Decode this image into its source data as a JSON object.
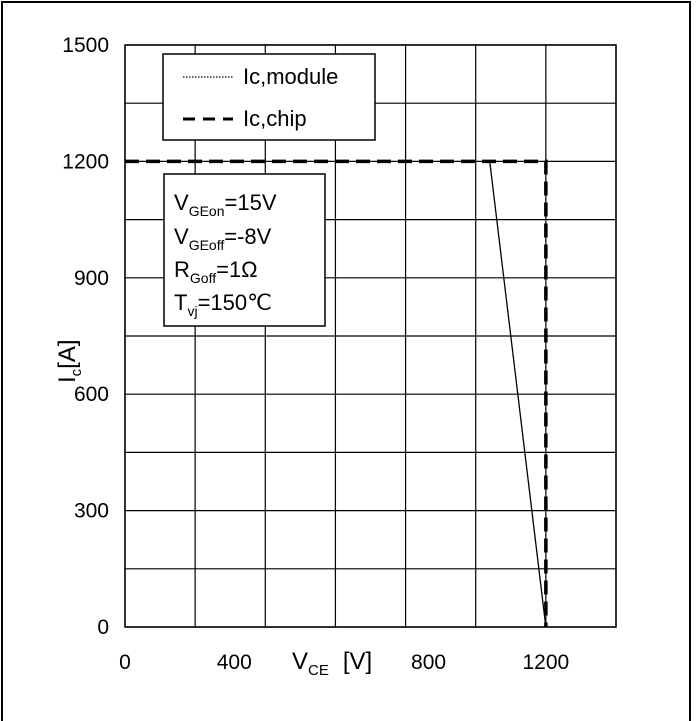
{
  "chart_data": {
    "type": "line",
    "xlabel": {
      "main": "V",
      "sub": "CE",
      "unit": "[V]"
    },
    "ylabel": {
      "main": "I",
      "sub": "c",
      "unit": "[A]"
    },
    "xlim": [
      0,
      1400
    ],
    "ylim": [
      0,
      1500
    ],
    "x_ticks": [
      "0",
      "400",
      "800",
      "1200"
    ],
    "y_ticks": [
      "0",
      "300",
      "600",
      "900",
      "1200",
      "1500"
    ],
    "grid": true,
    "legend_position": "top-left",
    "series": [
      {
        "name": "Ic,module",
        "style": "dotted",
        "x": [
          1040,
          1200
        ],
        "y": [
          1200,
          0
        ]
      },
      {
        "name": "Ic,chip",
        "style": "dashed",
        "x": [
          0,
          1200,
          1200
        ],
        "y": [
          1200,
          1200,
          0
        ]
      }
    ],
    "annotation": [
      {
        "main": "V",
        "sub": "GEon",
        "value": "=15V"
      },
      {
        "main": "V",
        "sub": "GEoff",
        "value": "=-8V"
      },
      {
        "main": "R",
        "sub": "Goff",
        "value": "=1Ω"
      },
      {
        "main": "T",
        "sub": "vj",
        "value": "=150℃"
      }
    ]
  }
}
